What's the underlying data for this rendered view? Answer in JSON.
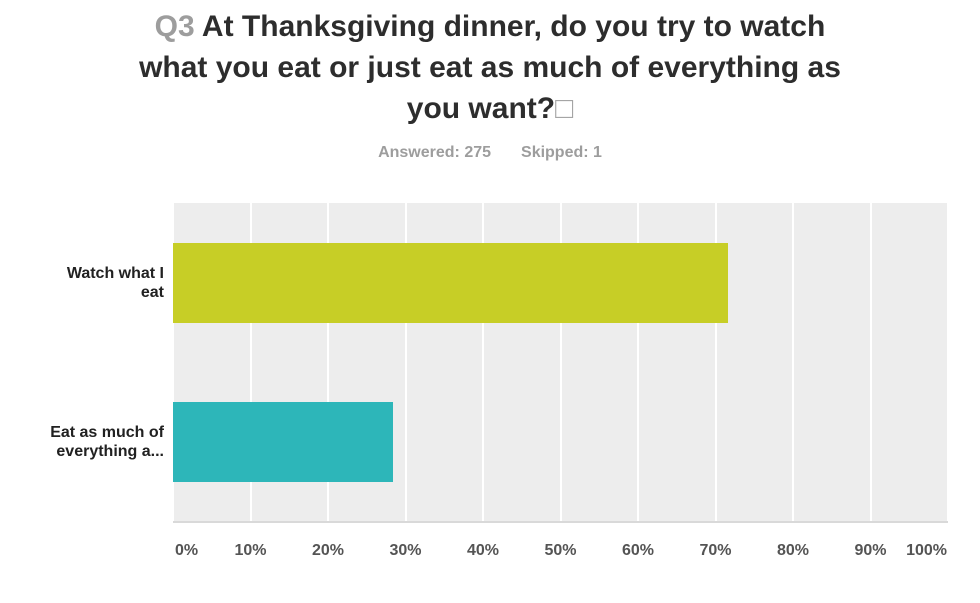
{
  "header": {
    "question_number": "Q3",
    "question_text": " At Thanksgiving dinner, do you try to watch what you eat or just eat as much of everything as you want?",
    "trailing_box_glyph": "□",
    "answered_label": "Answered: 275",
    "skipped_label": "Skipped: 1"
  },
  "chart_data": {
    "type": "bar",
    "orientation": "horizontal",
    "title": "Q3 At Thanksgiving dinner, do you try to watch what you eat or just eat as much of everything as you want?",
    "answered": 275,
    "skipped": 1,
    "categories": [
      "Watch what I eat",
      "Eat as much of everything a..."
    ],
    "categories_display_lines": [
      [
        "Watch what I",
        "eat"
      ],
      [
        "Eat as much of",
        "everything a..."
      ]
    ],
    "values": [
      71.64,
      28.36
    ],
    "bar_colors": [
      "#c7ce26",
      "#2db6b9"
    ],
    "xlabel": "",
    "ylabel": "",
    "xlim": [
      0,
      100
    ],
    "x_tick_labels": [
      "0%",
      "10%",
      "20%",
      "30%",
      "40%",
      "50%",
      "60%",
      "70%",
      "80%",
      "90%",
      "100%"
    ],
    "grid": true,
    "legend": false,
    "plot_background": "#ededed",
    "gridline_color": "#ffffff"
  },
  "colors": {
    "title_text": "#2d2d2d",
    "muted_gray": "#9d9d9d",
    "tick_text": "#545454",
    "category_text": "#212121"
  }
}
